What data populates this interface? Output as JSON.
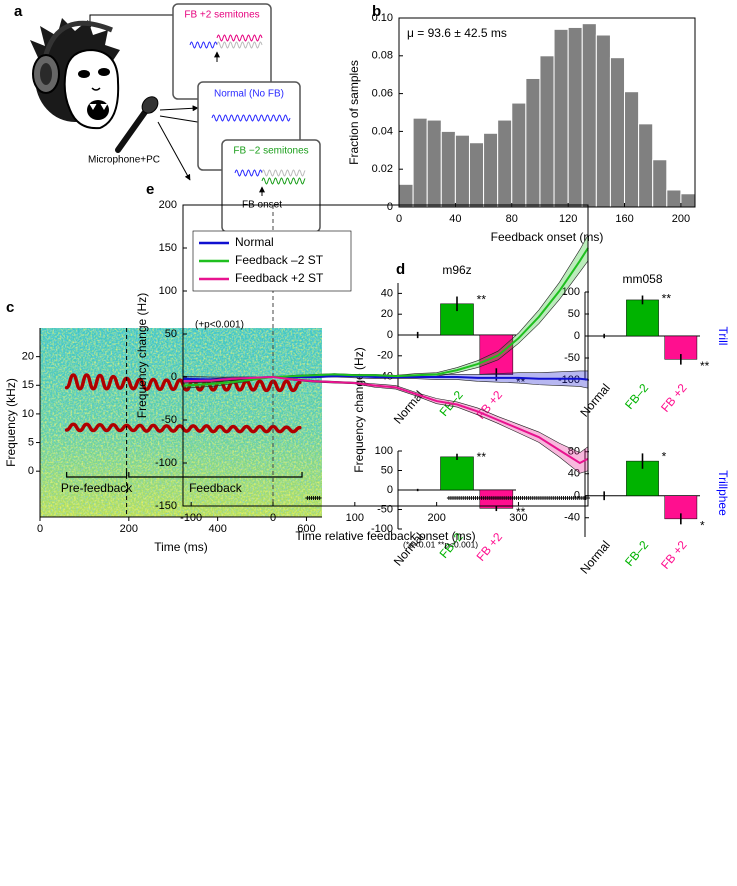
{
  "panel_labels": [
    "a",
    "b",
    "c",
    "d",
    "e"
  ],
  "diagram": {
    "boxes": [
      "FB +2 semitones",
      "Normal (No FB)",
      "FB −2 semitones"
    ],
    "onset_label": "FB onset",
    "device_label": "Microphone+PC"
  },
  "chart_data": [
    {
      "type": "histogram",
      "xlabel": "Feedback onset (ms)",
      "ylabel": "Fraction of samples",
      "annotation": "μ = 93.6 ± 42.5 ms",
      "bins": [
        0,
        10,
        20,
        30,
        40,
        50,
        60,
        70,
        80,
        90,
        100,
        110,
        120,
        130,
        140,
        150,
        160,
        170,
        180,
        190,
        200,
        210
      ],
      "values": [
        0.012,
        0.047,
        0.046,
        0.04,
        0.038,
        0.034,
        0.039,
        0.046,
        0.055,
        0.068,
        0.08,
        0.094,
        0.095,
        0.097,
        0.091,
        0.079,
        0.061,
        0.044,
        0.025,
        0.009,
        0.007
      ],
      "color": "#808080",
      "xlim": [
        0,
        210
      ],
      "ylim": [
        0,
        0.1
      ],
      "xticks": [
        0,
        40,
        80,
        120,
        160,
        200
      ],
      "yticks": [
        0,
        0.02,
        0.04,
        0.06,
        0.08,
        {
          "value": 0.1,
          "label": "0.10"
        }
      ]
    },
    {
      "type": "spectrogram",
      "xlabel": "Time (ms)",
      "ylabel": "Frequency (kHz)",
      "xlim": [
        0,
        635
      ],
      "ylim": [
        -8,
        25
      ],
      "xticks": [
        0,
        200,
        400,
        600
      ],
      "yticks": [
        0,
        5,
        10,
        15,
        20
      ],
      "color": "#b00000",
      "x": [
        60,
        75,
        90,
        105,
        120,
        135,
        150,
        165,
        180,
        195,
        210,
        225,
        240,
        255,
        270,
        285,
        300,
        315,
        330,
        345,
        360,
        375,
        390,
        405,
        420,
        435,
        450,
        465,
        480,
        495,
        510,
        525,
        540,
        555,
        570,
        585
      ],
      "series": [
        {
          "values": [
            14.6,
            16.8,
            14.4,
            16.8,
            14.4,
            16.7,
            14.4,
            16.5,
            14.5,
            16.2,
            14.4,
            16.0,
            14.3,
            16.0,
            14.3,
            15.9,
            14.3,
            15.9,
            14.2,
            15.9,
            14.2,
            15.8,
            14.2,
            15.8,
            14.2,
            15.8,
            14.2,
            15.7,
            14.2,
            15.7,
            14.1,
            15.7,
            14.1,
            15.7,
            14.1,
            15.5
          ]
        },
        {
          "values": [
            7.2,
            8.2,
            7.1,
            8.2,
            7.1,
            8.1,
            7.1,
            8.1,
            7.1,
            8.0,
            7.1,
            8.0,
            7.0,
            8.0,
            7.0,
            7.9,
            7.0,
            7.9,
            7.0,
            7.9,
            7.0,
            7.9,
            6.9,
            7.8,
            6.9,
            7.8,
            6.9,
            7.8,
            6.9,
            7.8,
            6.9,
            7.8,
            6.9,
            7.7,
            6.9,
            7.6
          ]
        }
      ],
      "brackets": [
        {
          "label": "Pre-feedback",
          "range": [
            60,
            195
          ]
        },
        {
          "label": "Feedback",
          "range": [
            200,
            590
          ]
        }
      ]
    },
    {
      "type": "bar",
      "title": "m96z",
      "ylabel": "Frequency change (Hz)",
      "categories": [
        "Normal",
        "FB–2",
        "FB +2"
      ],
      "colors": [
        "#000000",
        "#00b300",
        "#ff0f8f"
      ],
      "values": [
        0,
        30,
        -38
      ],
      "errors": [
        3,
        7,
        6
      ],
      "significance": [
        null,
        "**",
        "**"
      ],
      "ylim": [
        -50,
        50
      ],
      "yticks": [
        -40,
        -20,
        0,
        20,
        40
      ]
    },
    {
      "type": "bar",
      "title": "mm058",
      "row_label": "Trill",
      "categories": [
        "Normal",
        "FB–2",
        "FB +2"
      ],
      "colors": [
        "#000000",
        "#00b300",
        "#ff0f8f"
      ],
      "values": [
        0,
        82,
        -53
      ],
      "errors": [
        5,
        10,
        12
      ],
      "significance": [
        null,
        "**",
        "**"
      ],
      "ylim": [
        -100,
        100
      ],
      "yticks": [
        -100,
        -50,
        0,
        50,
        100
      ]
    },
    {
      "type": "bar",
      "note": "(*p<0.01 **p<0.001)",
      "categories": [
        "Normal",
        "FB–2",
        "FB +2"
      ],
      "colors": [
        "#000000",
        "#00b300",
        "#ff0f8f"
      ],
      "values": [
        0,
        85,
        -47
      ],
      "errors": [
        3,
        8,
        7
      ],
      "significance": [
        null,
        "**",
        "**"
      ],
      "ylim": [
        -100,
        100
      ],
      "yticks": [
        -100,
        -50,
        0,
        50,
        100
      ]
    },
    {
      "type": "bar",
      "row_label": "Trillphee",
      "categories": [
        "Normal",
        "FB–2",
        "FB +2"
      ],
      "colors": [
        "#000000",
        "#00b300",
        "#ff0f8f"
      ],
      "values": [
        0,
        63,
        -42
      ],
      "errors": [
        8,
        14,
        10
      ],
      "significance": [
        null,
        "*",
        "*"
      ],
      "ylim": [
        -75,
        85
      ],
      "yticks": [
        -40,
        0,
        40,
        80
      ]
    },
    {
      "type": "line",
      "xlabel": "Time relative feedback onset (ms)",
      "ylabel": "Frequency change (Hz)",
      "annotation": "(+p<0.001)",
      "legend": "upper left",
      "xlim": [
        -110,
        385
      ],
      "ylim": [
        -150,
        200
      ],
      "xticks": [
        -100,
        0,
        100,
        200,
        300
      ],
      "yticks": [
        -150,
        -100,
        -50,
        0,
        50,
        100,
        150,
        200
      ],
      "x": [
        -110,
        -75,
        -50,
        -25,
        0,
        25,
        50,
        75,
        100,
        125,
        150,
        175,
        200,
        225,
        250,
        275,
        300,
        325,
        350,
        375,
        385
      ],
      "series": [
        {
          "name": "Normal",
          "color": "#1010d0",
          "values": [
            -2,
            -3,
            -2,
            -1,
            0,
            0,
            0,
            1,
            1,
            0,
            0,
            0,
            0,
            0,
            -1,
            -1,
            -1,
            -2,
            -2,
            -2,
            -3
          ],
          "band": [
            3,
            3,
            2,
            1,
            0,
            1,
            1,
            1,
            2,
            2,
            2,
            2,
            3,
            3,
            4,
            5,
            6,
            7,
            8,
            9,
            10
          ]
        },
        {
          "name": "Feedback –2 ST",
          "color": "#1fbf1f",
          "values": [
            -10,
            -8,
            -6,
            -3,
            0,
            1,
            2,
            3,
            2,
            2,
            1,
            2,
            3,
            8,
            15,
            25,
            45,
            70,
            100,
            135,
            150
          ],
          "band": [
            3,
            3,
            2,
            1,
            0,
            1,
            1,
            1,
            1,
            1,
            1,
            2,
            2,
            3,
            4,
            5,
            6,
            8,
            10,
            13,
            15
          ]
        },
        {
          "name": "Feedback +2 ST",
          "color": "#e8138f",
          "values": [
            -5,
            -4,
            -2,
            -1,
            0,
            -3,
            -5,
            -6,
            -7,
            -10,
            -12,
            -20,
            -28,
            -32,
            -40,
            -50,
            -60,
            -70,
            -85,
            -100,
            -95
          ],
          "band": [
            2,
            2,
            2,
            1,
            0,
            1,
            1,
            1,
            1,
            2,
            2,
            2,
            3,
            3,
            4,
            4,
            5,
            6,
            8,
            12,
            14
          ]
        }
      ],
      "significance_ranges": [
        [
          42,
          58
        ],
        [
          215,
          385
        ]
      ]
    }
  ]
}
